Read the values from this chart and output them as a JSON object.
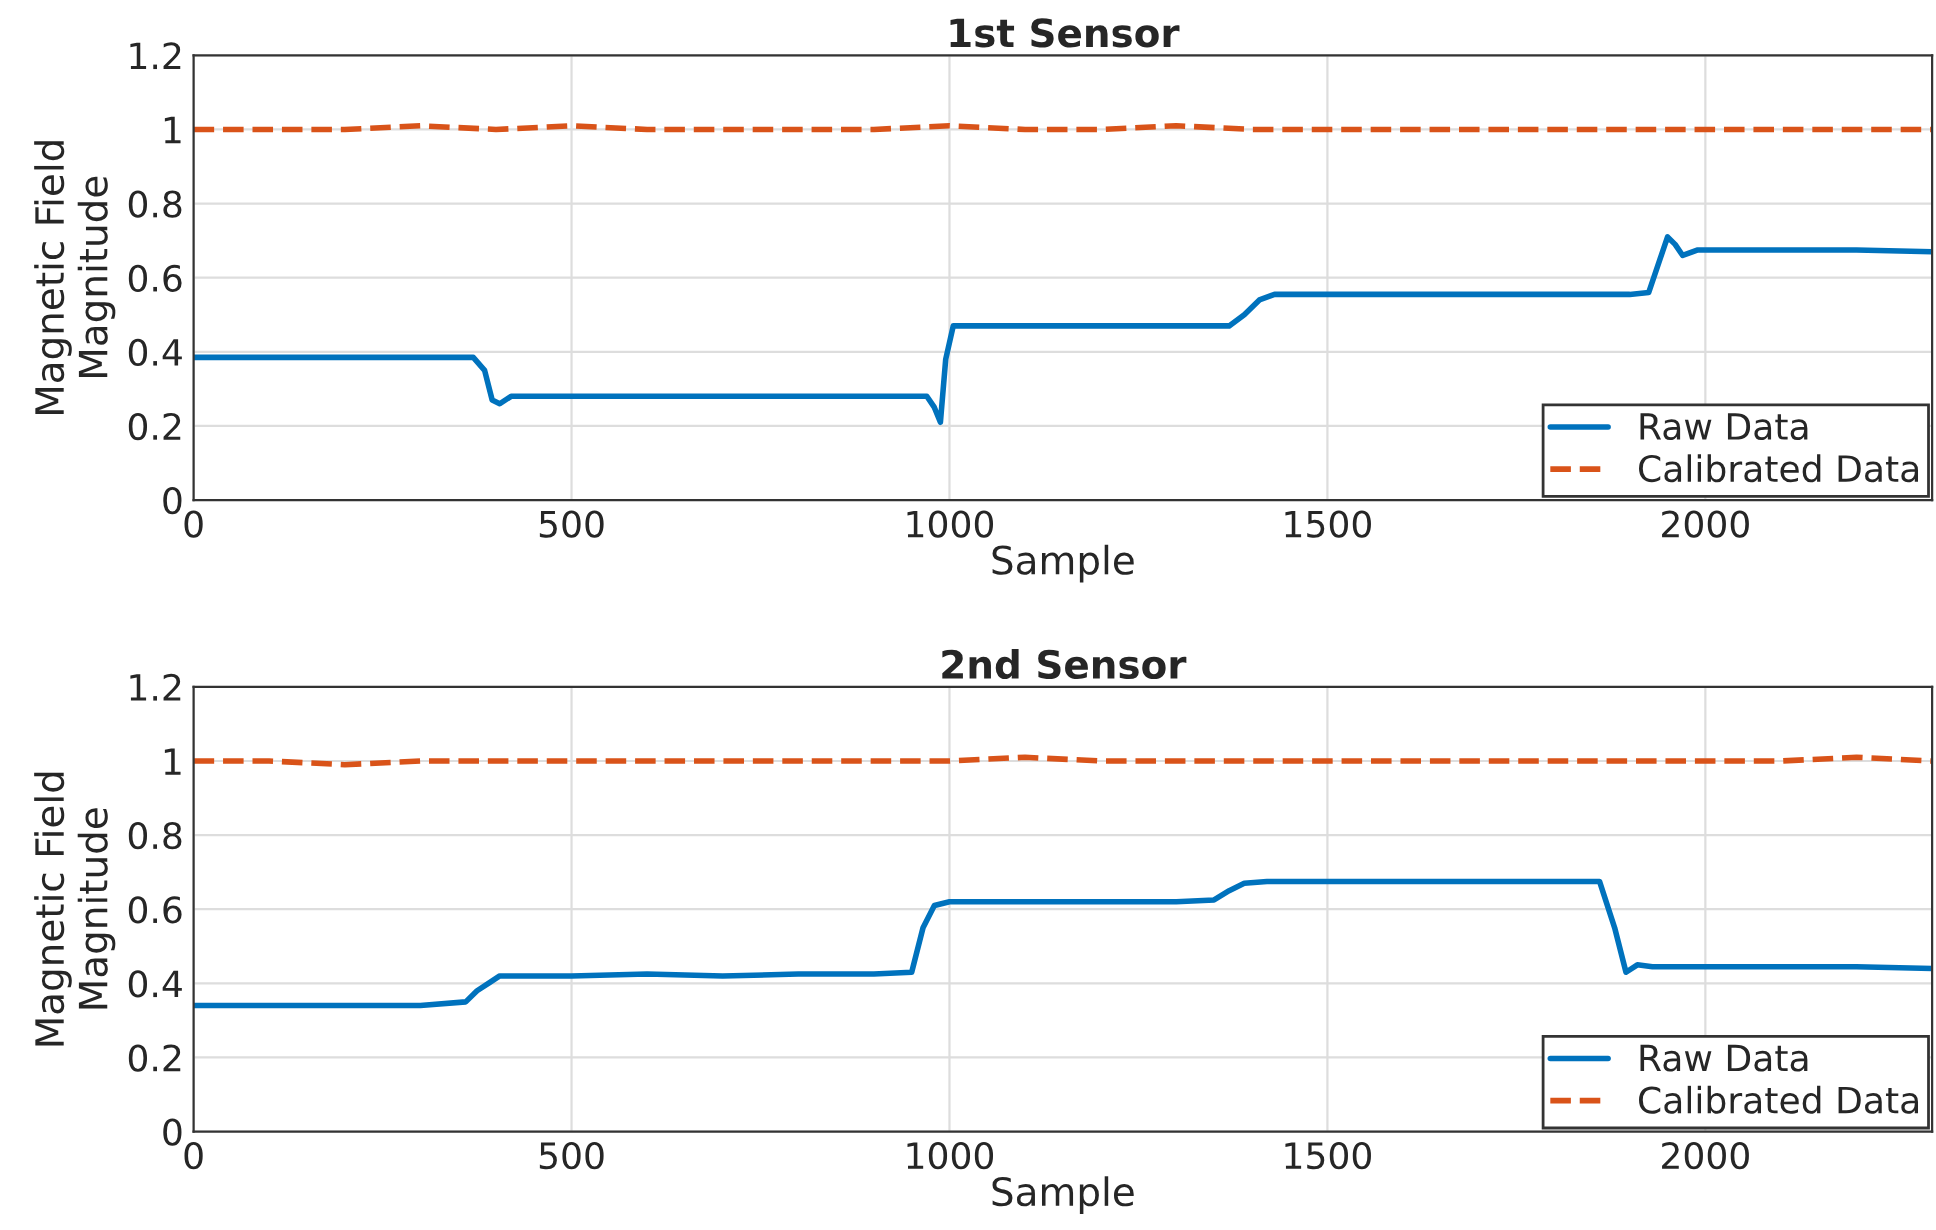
{
  "chart_data": [
    {
      "type": "line",
      "title": "1st Sensor",
      "xlabel": "Sample",
      "ylabel": "Magnetic Field\nMagnitude",
      "xlim": [
        0,
        2300
      ],
      "ylim": [
        0,
        1.2
      ],
      "xticks": [
        0,
        500,
        1000,
        1500,
        2000
      ],
      "yticks": [
        0,
        0.2,
        0.4,
        0.6,
        0.8,
        1,
        1.2
      ],
      "grid": true,
      "legend": "bottom right",
      "series": [
        {
          "name": "Raw Data",
          "color": "#0072bd",
          "line_style": "solid",
          "x": [
            0,
            100,
            200,
            300,
            370,
            385,
            395,
            405,
            420,
            500,
            600,
            700,
            800,
            900,
            970,
            980,
            988,
            995,
            1005,
            1020,
            1100,
            1200,
            1300,
            1370,
            1390,
            1410,
            1430,
            1500,
            1600,
            1700,
            1800,
            1900,
            1925,
            1940,
            1950,
            1960,
            1970,
            1990,
            2100,
            2200,
            2300
          ],
          "values": [
            0.385,
            0.385,
            0.385,
            0.385,
            0.385,
            0.35,
            0.27,
            0.26,
            0.28,
            0.28,
            0.28,
            0.28,
            0.28,
            0.28,
            0.28,
            0.25,
            0.21,
            0.38,
            0.47,
            0.47,
            0.47,
            0.47,
            0.47,
            0.47,
            0.5,
            0.54,
            0.555,
            0.555,
            0.555,
            0.555,
            0.555,
            0.555,
            0.56,
            0.65,
            0.71,
            0.69,
            0.66,
            0.675,
            0.675,
            0.675,
            0.67
          ]
        },
        {
          "name": "Calibrated Data",
          "color": "#d95319",
          "line_style": "dashed",
          "x": [
            0,
            100,
            200,
            300,
            400,
            500,
            600,
            700,
            800,
            900,
            1000,
            1100,
            1200,
            1300,
            1400,
            1500,
            1600,
            1700,
            1800,
            1900,
            2000,
            2100,
            2200,
            2300
          ],
          "values": [
            1.0,
            1.0,
            1.0,
            1.01,
            1.0,
            1.01,
            1.0,
            1.0,
            1.0,
            1.0,
            1.01,
            1.0,
            1.0,
            1.01,
            1.0,
            1.0,
            1.0,
            1.0,
            1.0,
            1.0,
            1.0,
            1.0,
            1.0,
            1.0
          ]
        }
      ]
    },
    {
      "type": "line",
      "title": "2nd Sensor",
      "xlabel": "Sample",
      "ylabel": "Magnetic Field\nMagnitude",
      "xlim": [
        0,
        2300
      ],
      "ylim": [
        0,
        1.2
      ],
      "xticks": [
        0,
        500,
        1000,
        1500,
        2000
      ],
      "yticks": [
        0,
        0.2,
        0.4,
        0.6,
        0.8,
        1,
        1.2
      ],
      "grid": true,
      "legend": "bottom right",
      "series": [
        {
          "name": "Raw Data",
          "color": "#0072bd",
          "line_style": "solid",
          "x": [
            0,
            100,
            200,
            300,
            360,
            375,
            390,
            405,
            500,
            600,
            700,
            800,
            900,
            950,
            965,
            980,
            1000,
            1100,
            1200,
            1300,
            1350,
            1370,
            1390,
            1420,
            1500,
            1600,
            1700,
            1800,
            1860,
            1880,
            1895,
            1910,
            1930,
            2000,
            2100,
            2200,
            2300
          ],
          "values": [
            0.34,
            0.34,
            0.34,
            0.34,
            0.35,
            0.38,
            0.4,
            0.42,
            0.42,
            0.425,
            0.42,
            0.425,
            0.425,
            0.43,
            0.55,
            0.61,
            0.62,
            0.62,
            0.62,
            0.62,
            0.625,
            0.65,
            0.67,
            0.675,
            0.675,
            0.675,
            0.675,
            0.675,
            0.675,
            0.55,
            0.43,
            0.45,
            0.445,
            0.445,
            0.445,
            0.445,
            0.44
          ]
        },
        {
          "name": "Calibrated Data",
          "color": "#d95319",
          "line_style": "dashed",
          "x": [
            0,
            100,
            200,
            300,
            400,
            500,
            600,
            700,
            800,
            900,
            1000,
            1100,
            1200,
            1300,
            1400,
            1500,
            1600,
            1700,
            1800,
            1900,
            2000,
            2100,
            2200,
            2300
          ],
          "values": [
            1.0,
            1.0,
            0.99,
            1.0,
            1.0,
            1.0,
            1.0,
            1.0,
            1.0,
            1.0,
            1.0,
            1.01,
            1.0,
            1.0,
            1.0,
            1.0,
            1.0,
            1.0,
            1.0,
            1.0,
            1.0,
            1.0,
            1.01,
            1.0
          ]
        }
      ]
    }
  ]
}
